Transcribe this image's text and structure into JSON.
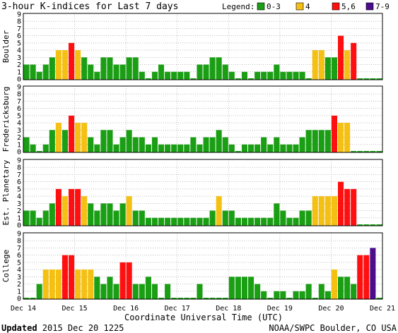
{
  "title": "3-hour K-indices for Last 7 days",
  "legend": {
    "label": "Legend:",
    "items": [
      {
        "label": "0-3",
        "color": "#1a9e14"
      },
      {
        "label": "4",
        "color": "#f5c014"
      },
      {
        "label": "5,6",
        "color": "#ff1010"
      },
      {
        "label": "7-9",
        "color": "#4b0d8c"
      }
    ]
  },
  "xlabel": "Coordinate Universal Time (UTC)",
  "footer_left": "Updated 2015 Dec 20 1225",
  "footer_left_bold": "Updated",
  "footer_left_rest": " 2015 Dec 20 1225",
  "footer_right": "NOAA/SWPC Boulder, CO USA",
  "chart_data": [
    {
      "type": "bar",
      "title": "Boulder",
      "ylim": [
        0,
        9
      ],
      "yticks": [
        0,
        1,
        2,
        3,
        4,
        5,
        6,
        7,
        8,
        9
      ],
      "x_tick_labels": [
        "Dec 14",
        "Dec 15",
        "Dec 16",
        "Dec 17",
        "Dec 18",
        "Dec 19",
        "Dec 20",
        "Dec 21"
      ],
      "values": [
        2,
        2,
        1,
        2,
        3,
        4,
        4,
        5,
        4,
        3,
        2,
        1,
        3,
        3,
        2,
        2,
        3,
        3,
        1,
        0,
        1,
        2,
        1,
        1,
        1,
        1,
        0,
        2,
        2,
        3,
        3,
        2,
        1,
        0,
        1,
        0,
        1,
        1,
        1,
        2,
        1,
        1,
        1,
        1,
        0,
        4,
        4,
        3,
        3,
        6,
        4,
        5,
        0,
        0,
        0,
        0
      ]
    },
    {
      "type": "bar",
      "title": "Fredericksburg",
      "ylim": [
        0,
        9
      ],
      "yticks": [
        0,
        1,
        2,
        3,
        4,
        5,
        6,
        7,
        8,
        9
      ],
      "x_tick_labels": [
        "Dec 14",
        "Dec 15",
        "Dec 16",
        "Dec 17",
        "Dec 18",
        "Dec 19",
        "Dec 20",
        "Dec 21"
      ],
      "values": [
        2,
        1,
        0,
        1,
        3,
        4,
        3,
        5,
        4,
        4,
        2,
        1,
        3,
        3,
        1,
        2,
        3,
        2,
        2,
        1,
        2,
        1,
        1,
        1,
        1,
        1,
        2,
        1,
        2,
        2,
        3,
        2,
        1,
        0,
        1,
        1,
        1,
        2,
        1,
        2,
        1,
        1,
        1,
        2,
        3,
        3,
        3,
        3,
        5,
        4,
        4,
        0,
        0,
        0,
        0,
        0
      ]
    },
    {
      "type": "bar",
      "title": "Est. Planetary",
      "ylim": [
        0,
        9
      ],
      "yticks": [
        0,
        1,
        2,
        3,
        4,
        5,
        6,
        7,
        8,
        9
      ],
      "x_tick_labels": [
        "Dec 14",
        "Dec 15",
        "Dec 16",
        "Dec 17",
        "Dec 18",
        "Dec 19",
        "Dec 20",
        "Dec 21"
      ],
      "values": [
        2,
        2,
        1,
        2,
        3,
        5,
        4,
        5,
        5,
        4,
        3,
        2,
        3,
        3,
        2,
        3,
        4,
        2,
        2,
        1,
        1,
        1,
        1,
        1,
        1,
        1,
        1,
        1,
        1,
        2,
        4,
        2,
        2,
        1,
        1,
        1,
        1,
        1,
        1,
        3,
        2,
        1,
        1,
        2,
        2,
        4,
        4,
        4,
        4,
        6,
        5,
        5,
        0,
        0,
        0,
        0
      ]
    },
    {
      "type": "bar",
      "title": "College",
      "ylim": [
        0,
        9
      ],
      "yticks": [
        0,
        1,
        2,
        3,
        4,
        5,
        6,
        7,
        8,
        9
      ],
      "x_tick_labels": [
        "Dec 14",
        "Dec 15",
        "Dec 16",
        "Dec 17",
        "Dec 18",
        "Dec 19",
        "Dec 20",
        "Dec 21"
      ],
      "values": [
        0,
        0,
        2,
        4,
        4,
        4,
        6,
        6,
        4,
        4,
        4,
        3,
        2,
        3,
        2,
        5,
        5,
        2,
        2,
        3,
        2,
        0,
        2,
        0,
        0,
        0,
        0,
        2,
        0,
        0,
        0,
        0,
        3,
        3,
        3,
        3,
        2,
        1,
        0,
        1,
        1,
        0,
        1,
        1,
        2,
        0,
        2,
        1,
        4,
        3,
        3,
        2,
        6,
        6,
        7,
        0
      ]
    }
  ]
}
